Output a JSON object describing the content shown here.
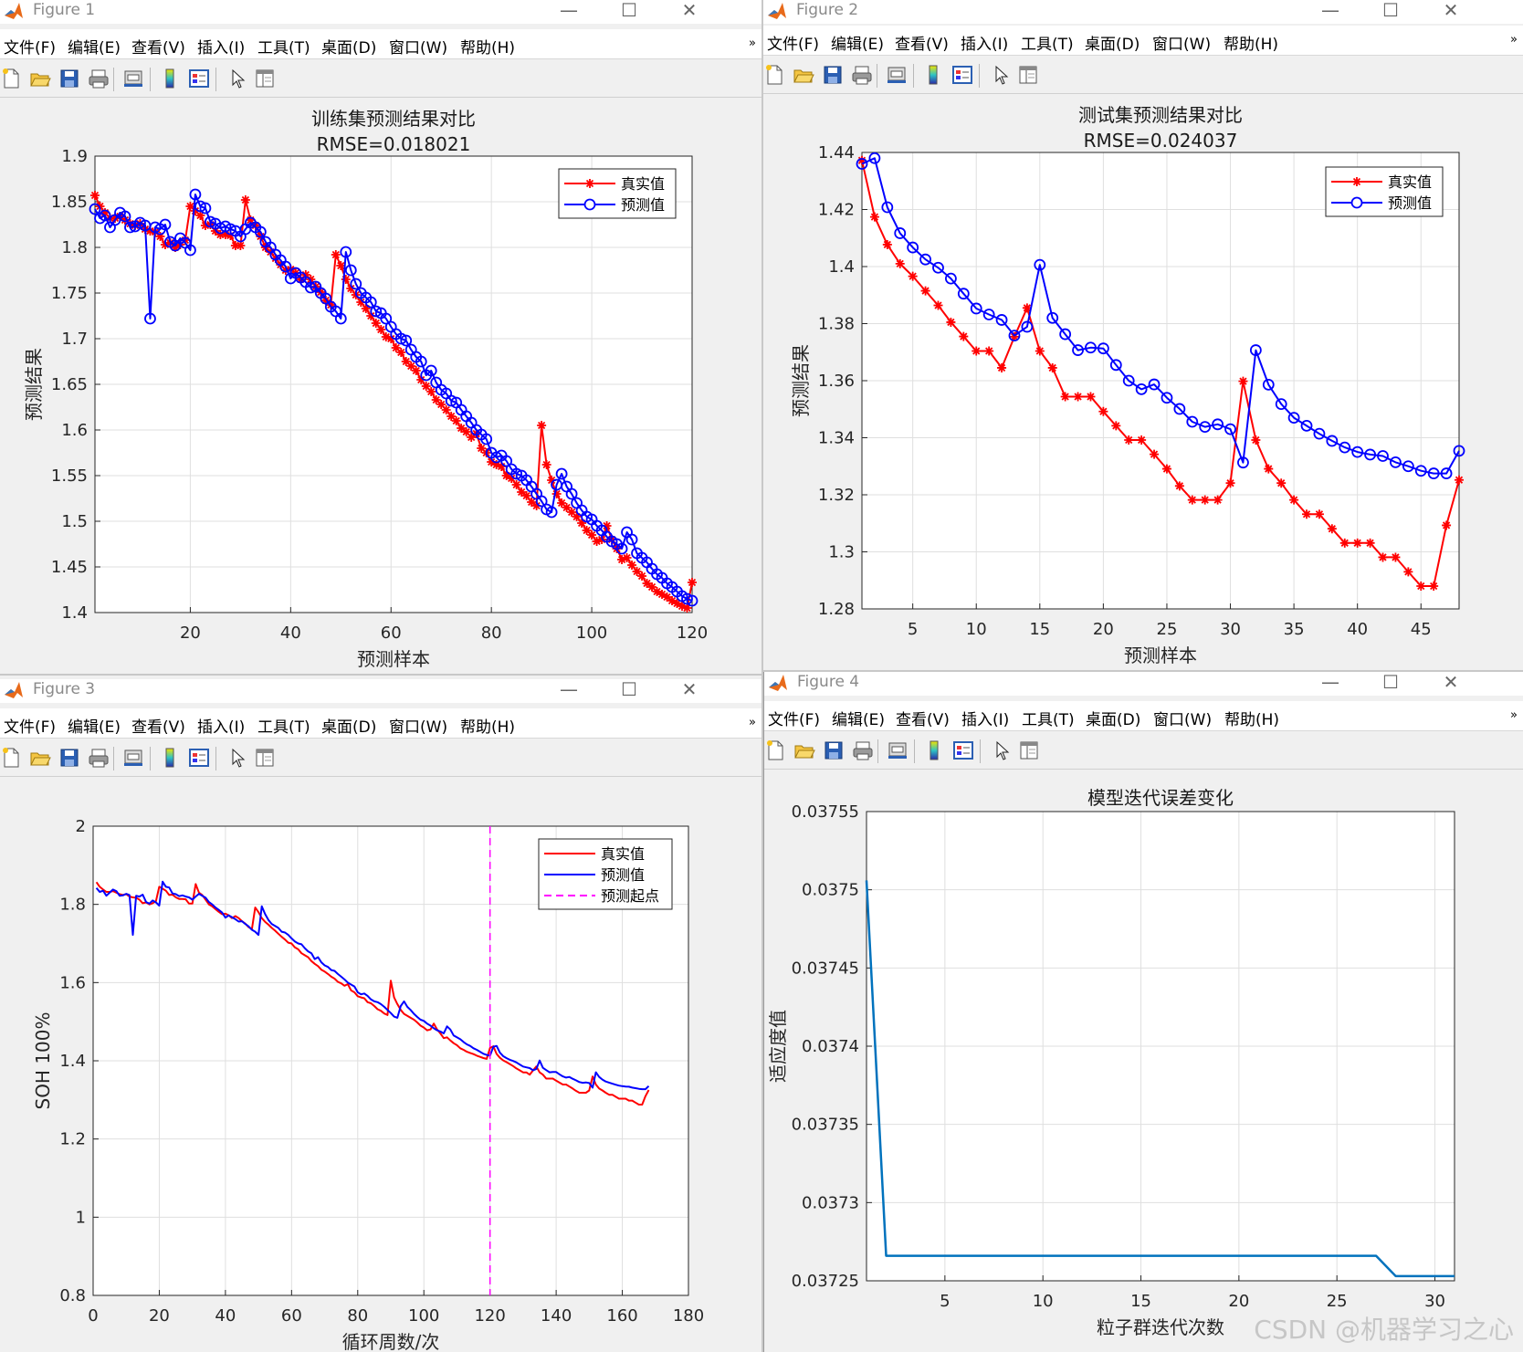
{
  "colors": {
    "red": "#ff0000",
    "blue": "#0000ff",
    "magenta": "#ff00ff",
    "fitness": "#0072bd",
    "grid": "#dfdfdf"
  },
  "menus": [
    "文件(F)",
    "编辑(E)",
    "查看(V)",
    "插入(I)",
    "工具(T)",
    "桌面(D)",
    "窗口(W)",
    "帮助(H)"
  ],
  "toolbar_icons": [
    "new-file-icon",
    "open-folder-icon",
    "save-icon",
    "print-icon",
    "print-preview-icon",
    "colorbar-icon",
    "legend-icon",
    "pointer-icon",
    "property-inspector-icon"
  ],
  "windows": [
    {
      "title": "Figure 1"
    },
    {
      "title": "Figure 2"
    },
    {
      "title": "Figure 3"
    },
    {
      "title": "Figure 4"
    }
  ],
  "watermark": "CSDN @机器学习之心",
  "chart_data": [
    {
      "type": "line",
      "title": "训练集预测结果对比",
      "subtitle": "RMSE=0.018021",
      "xlabel": "预测样本",
      "ylabel": "预测结果",
      "xlim": [
        1,
        120
      ],
      "ylim": [
        1.4,
        1.9
      ],
      "xticks": [
        20,
        40,
        60,
        80,
        100,
        120
      ],
      "yticks": [
        1.4,
        1.45,
        1.5,
        1.55,
        1.6,
        1.65,
        1.7,
        1.75,
        1.8,
        1.85,
        1.9
      ],
      "grid": true,
      "legend_position": "top-right",
      "series": [
        {
          "name": "真实值",
          "marker": "star",
          "color": "#ff0000",
          "values": [
            1.857,
            1.845,
            1.838,
            1.832,
            1.832,
            1.834,
            1.83,
            1.826,
            1.824,
            1.826,
            1.82,
            1.818,
            1.817,
            1.812,
            1.803,
            1.805,
            1.8,
            1.803,
            1.808,
            1.845,
            1.84,
            1.835,
            1.824,
            1.825,
            1.818,
            1.814,
            1.814,
            1.813,
            1.802,
            1.802,
            1.852,
            1.83,
            1.824,
            1.812,
            1.8,
            1.795,
            1.788,
            1.781,
            1.775,
            1.776,
            1.772,
            1.765,
            1.77,
            1.765,
            1.757,
            1.751,
            1.742,
            1.737,
            1.792,
            1.78,
            1.765,
            1.755,
            1.748,
            1.74,
            1.733,
            1.725,
            1.717,
            1.71,
            1.702,
            1.7,
            1.69,
            1.685,
            1.675,
            1.67,
            1.665,
            1.655,
            1.648,
            1.642,
            1.633,
            1.628,
            1.622,
            1.615,
            1.61,
            1.602,
            1.598,
            1.592,
            1.596,
            1.58,
            1.575,
            1.565,
            1.562,
            1.56,
            1.55,
            1.547,
            1.54,
            1.532,
            1.528,
            1.521,
            1.517,
            1.605,
            1.562,
            1.545,
            1.53,
            1.52,
            1.515,
            1.51,
            1.505,
            1.498,
            1.49,
            1.485,
            1.478,
            1.48,
            1.495,
            1.48,
            1.47,
            1.458,
            1.46,
            1.452,
            1.445,
            1.44,
            1.432,
            1.428,
            1.423,
            1.42,
            1.417,
            1.413,
            1.41,
            1.407,
            1.405,
            1.433
          ]
        },
        {
          "name": "预测值",
          "marker": "circle",
          "color": "#0000ff",
          "values": [
            1.842,
            1.832,
            1.835,
            1.822,
            1.83,
            1.838,
            1.834,
            1.822,
            1.823,
            1.827,
            1.824,
            1.722,
            1.822,
            1.82,
            1.825,
            1.806,
            1.802,
            1.81,
            1.805,
            1.797,
            1.858,
            1.845,
            1.843,
            1.828,
            1.826,
            1.821,
            1.823,
            1.82,
            1.818,
            1.812,
            1.82,
            1.827,
            1.822,
            1.817,
            1.806,
            1.8,
            1.792,
            1.786,
            1.779,
            1.766,
            1.772,
            1.767,
            1.762,
            1.756,
            1.757,
            1.75,
            1.744,
            1.735,
            1.73,
            1.722,
            1.795,
            1.775,
            1.76,
            1.75,
            1.745,
            1.74,
            1.73,
            1.728,
            1.722,
            1.713,
            1.705,
            1.7,
            1.698,
            1.688,
            1.68,
            1.675,
            1.66,
            1.665,
            1.652,
            1.644,
            1.64,
            1.632,
            1.63,
            1.622,
            1.615,
            1.608,
            1.6,
            1.595,
            1.59,
            1.575,
            1.57,
            1.572,
            1.566,
            1.557,
            1.552,
            1.55,
            1.545,
            1.538,
            1.53,
            1.522,
            1.513,
            1.51,
            1.54,
            1.552,
            1.538,
            1.53,
            1.52,
            1.512,
            1.505,
            1.502,
            1.495,
            1.49,
            1.483,
            1.478,
            1.475,
            1.47,
            1.488,
            1.48,
            1.465,
            1.46,
            1.455,
            1.448,
            1.442,
            1.438,
            1.432,
            1.428,
            1.423,
            1.418,
            1.415,
            1.413
          ]
        }
      ]
    },
    {
      "type": "line",
      "title": "测试集预测结果对比",
      "subtitle": "RMSE=0.024037",
      "xlabel": "预测样本",
      "ylabel": "预测结果",
      "xlim": [
        1,
        48
      ],
      "ylim": [
        1.28,
        1.44
      ],
      "xticks": [
        5,
        10,
        15,
        20,
        25,
        30,
        35,
        40,
        45
      ],
      "yticks": [
        1.28,
        1.3,
        1.32,
        1.34,
        1.36,
        1.38,
        1.4,
        1.42,
        1.44
      ],
      "grid": true,
      "legend_position": "top-right",
      "series": [
        {
          "name": "真实值",
          "marker": "star",
          "color": "#ff0000",
          "values": [
            1.4372,
            1.4174,
            1.4077,
            1.401,
            1.3966,
            1.3915,
            1.3864,
            1.3805,
            1.3755,
            1.3704,
            1.3704,
            1.3645,
            1.3754,
            1.3855,
            1.3704,
            1.3645,
            1.3544,
            1.3544,
            1.3544,
            1.3492,
            1.3442,
            1.3392,
            1.3392,
            1.3342,
            1.3291,
            1.3231,
            1.3182,
            1.3182,
            1.3182,
            1.3241,
            1.3598,
            1.3392,
            1.3291,
            1.3241,
            1.3182,
            1.3132,
            1.3132,
            1.3081,
            1.3031,
            1.3031,
            1.3031,
            1.2981,
            1.2981,
            1.293,
            1.288,
            1.288,
            1.3093,
            1.3252
          ]
        },
        {
          "name": "预测值",
          "marker": "circle",
          "color": "#0000ff",
          "values": [
            1.436,
            1.438,
            1.4208,
            1.4117,
            1.4067,
            1.4025,
            1.3996,
            1.3958,
            1.3905,
            1.3853,
            1.3832,
            1.3813,
            1.3758,
            1.3789,
            1.4006,
            1.382,
            1.3763,
            1.3707,
            1.3716,
            1.3713,
            1.3655,
            1.36,
            1.357,
            1.3587,
            1.354,
            1.3501,
            1.3456,
            1.3438,
            1.3447,
            1.343,
            1.3313,
            1.3707,
            1.3586,
            1.3518,
            1.347,
            1.3442,
            1.3414,
            1.3389,
            1.3366,
            1.335,
            1.3341,
            1.3336,
            1.3314,
            1.33,
            1.3284,
            1.3275,
            1.3275,
            1.3354
          ]
        }
      ]
    },
    {
      "type": "line",
      "title": "",
      "xlabel": "循环周数/次",
      "ylabel": "SOH 100%",
      "xlim": [
        0,
        180
      ],
      "ylim": [
        0.8,
        2
      ],
      "xticks": [
        0,
        20,
        40,
        60,
        80,
        100,
        120,
        140,
        160,
        180
      ],
      "yticks": [
        0.8,
        1,
        1.2,
        1.4,
        1.6,
        1.8,
        2
      ],
      "grid": true,
      "legend_position": "top-right",
      "series": [
        {
          "name": "真实值",
          "color": "#ff0000",
          "from": "train_true+test_true"
        },
        {
          "name": "预测值",
          "color": "#0000ff",
          "from": "train_pred+test_pred"
        },
        {
          "name": "预测起点",
          "color": "#ff00ff",
          "style": "dashed",
          "x": 120
        }
      ]
    },
    {
      "type": "line",
      "title": "模型迭代误差变化",
      "xlabel": "粒子群迭代次数",
      "ylabel": "适应度值",
      "xlim": [
        1,
        31
      ],
      "ylim": [
        0.03725,
        0.03755
      ],
      "xticks": [
        5,
        10,
        15,
        20,
        25,
        30
      ],
      "yticks": [
        0.03725,
        0.0373,
        0.03735,
        0.0374,
        0.03745,
        0.0375,
        0.03755
      ],
      "grid": true,
      "series": [
        {
          "name": "",
          "color": "#0072bd",
          "x": [
            1,
            2,
            3,
            4,
            5,
            6,
            7,
            8,
            9,
            10,
            11,
            12,
            13,
            14,
            15,
            16,
            17,
            18,
            19,
            20,
            21,
            22,
            23,
            24,
            25,
            26,
            27,
            28,
            29,
            30,
            31
          ],
          "values": [
            0.037506,
            0.037266,
            0.037266,
            0.037266,
            0.037266,
            0.037266,
            0.037266,
            0.037266,
            0.037266,
            0.037266,
            0.037266,
            0.037266,
            0.037266,
            0.037266,
            0.037266,
            0.037266,
            0.037266,
            0.037266,
            0.037266,
            0.037266,
            0.037266,
            0.037266,
            0.037266,
            0.037266,
            0.037266,
            0.037266,
            0.037266,
            0.037253,
            0.037253,
            0.037253,
            0.037253
          ]
        }
      ]
    }
  ]
}
